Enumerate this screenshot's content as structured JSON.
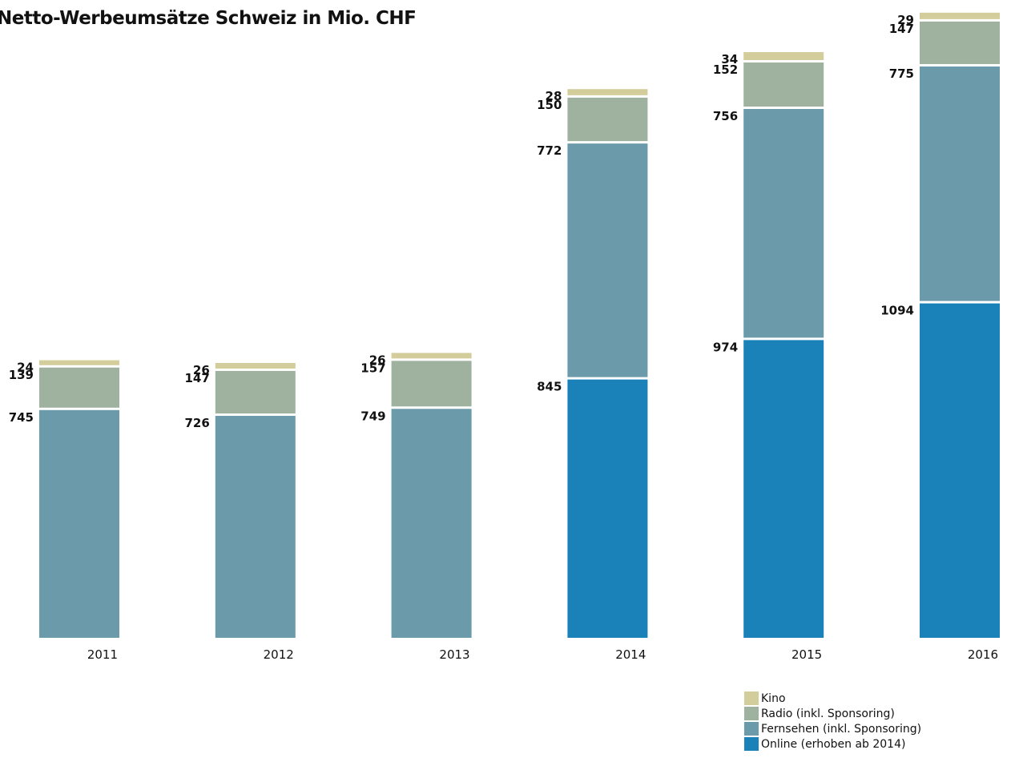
{
  "title": "Netto-Werbeumsätze Schweiz in Mio. CHF",
  "chart_data": {
    "type": "bar",
    "stacked": true,
    "title": "Netto-Werbeumsätze Schweiz in Mio. CHF",
    "xlabel": "",
    "ylabel": "",
    "categories": [
      "2011",
      "2012",
      "2013",
      "2014",
      "2015",
      "2016"
    ],
    "series": [
      {
        "name": "Online (erhoben ab 2014)",
        "color": "#1a82b9",
        "values": [
          null,
          null,
          null,
          845,
          974,
          1094
        ]
      },
      {
        "name": "Fernsehen (inkl. Sponsoring)",
        "color": "#6b9aab",
        "values": [
          745,
          726,
          749,
          772,
          756,
          775
        ]
      },
      {
        "name": "Radio (inkl. Sponsoring)",
        "color": "#9fb29f",
        "values": [
          139,
          147,
          157,
          150,
          152,
          147
        ]
      },
      {
        "name": "Kino",
        "color": "#d3cc9b",
        "values": [
          24,
          26,
          26,
          28,
          34,
          29
        ]
      }
    ],
    "grid": false,
    "legend": "bottom-right"
  },
  "legend": {
    "items": [
      {
        "label": "Kino",
        "color": "#d3cc9b"
      },
      {
        "label": "Radio (inkl. Sponsoring)",
        "color": "#9fb29f"
      },
      {
        "label": "Fernsehen (inkl. Sponsoring)",
        "color": "#6b9aab"
      },
      {
        "label": "Online (erhoben ab 2014)",
        "color": "#1a82b9"
      }
    ]
  }
}
